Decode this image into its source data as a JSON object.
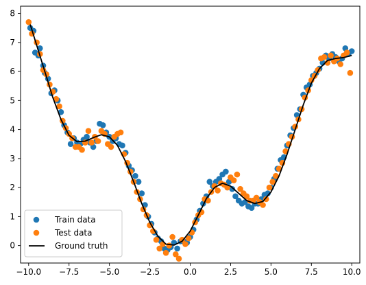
{
  "chart_data": {
    "type": "scatter",
    "title": "",
    "xlabel": "",
    "ylabel": "",
    "xlim": [
      -10.5,
      10.5
    ],
    "ylim": [
      -0.6,
      8.25
    ],
    "xticks": [
      -10,
      -7.5,
      -5,
      -2.5,
      0,
      2.5,
      5,
      7.5,
      10
    ],
    "xtick_labels": [
      "−10.0",
      "−7.5",
      "−5.0",
      "−2.5",
      "0.0",
      "2.5",
      "5.0",
      "7.5",
      "10.0"
    ],
    "yticks": [
      0,
      1,
      2,
      3,
      4,
      5,
      6,
      7,
      8
    ],
    "ytick_labels": [
      "0",
      "1",
      "2",
      "3",
      "4",
      "5",
      "6",
      "7",
      "8"
    ],
    "grid": false,
    "legend_position": "lower-left",
    "series": [
      {
        "name": "Train data",
        "kind": "scatter",
        "color": "#1f77b4",
        "points": [
          [
            -9.9,
            7.5
          ],
          [
            -9.7,
            7.4
          ],
          [
            -9.6,
            6.65
          ],
          [
            -9.4,
            6.55
          ],
          [
            -9.3,
            6.8
          ],
          [
            -9.1,
            6.2
          ],
          [
            -9.0,
            5.95
          ],
          [
            -8.8,
            5.75
          ],
          [
            -8.6,
            5.25
          ],
          [
            -8.4,
            5.35
          ],
          [
            -8.2,
            5.0
          ],
          [
            -8.0,
            4.6
          ],
          [
            -7.8,
            4.15
          ],
          [
            -7.6,
            3.9
          ],
          [
            -7.4,
            3.5
          ],
          [
            -7.2,
            3.7
          ],
          [
            -7.0,
            3.55
          ],
          [
            -6.8,
            3.5
          ],
          [
            -6.6,
            3.65
          ],
          [
            -6.4,
            3.75
          ],
          [
            -6.2,
            3.55
          ],
          [
            -6.0,
            3.4
          ],
          [
            -5.8,
            3.6
          ],
          [
            -5.6,
            4.2
          ],
          [
            -5.4,
            4.15
          ],
          [
            -5.2,
            3.9
          ],
          [
            -5.0,
            3.75
          ],
          [
            -4.8,
            3.6
          ],
          [
            -4.6,
            3.7
          ],
          [
            -4.4,
            3.5
          ],
          [
            -4.2,
            3.45
          ],
          [
            -4.0,
            3.2
          ],
          [
            -3.8,
            2.75
          ],
          [
            -3.6,
            2.6
          ],
          [
            -3.4,
            2.4
          ],
          [
            -3.2,
            2.2
          ],
          [
            -3.0,
            1.8
          ],
          [
            -2.8,
            1.4
          ],
          [
            -2.6,
            1.0
          ],
          [
            -2.4,
            0.75
          ],
          [
            -2.2,
            0.45
          ],
          [
            -2.0,
            0.25
          ],
          [
            -1.8,
            0.15
          ],
          [
            -1.6,
            -0.1
          ],
          [
            -1.4,
            -0.15
          ],
          [
            -1.2,
            -0.05
          ],
          [
            -1.0,
            0.1
          ],
          [
            -0.8,
            -0.1
          ],
          [
            -0.6,
            0.15
          ],
          [
            -0.4,
            0.15
          ],
          [
            -0.2,
            0.1
          ],
          [
            0.0,
            0.3
          ],
          [
            0.2,
            0.55
          ],
          [
            0.4,
            0.9
          ],
          [
            0.6,
            1.2
          ],
          [
            0.8,
            1.45
          ],
          [
            1.0,
            1.7
          ],
          [
            1.2,
            2.2
          ],
          [
            1.4,
            2.05
          ],
          [
            1.6,
            2.2
          ],
          [
            1.8,
            2.3
          ],
          [
            2.0,
            2.45
          ],
          [
            2.2,
            2.55
          ],
          [
            2.4,
            2.2
          ],
          [
            2.6,
            1.95
          ],
          [
            2.8,
            1.7
          ],
          [
            3.0,
            1.55
          ],
          [
            3.2,
            1.45
          ],
          [
            3.4,
            1.5
          ],
          [
            3.6,
            1.35
          ],
          [
            3.8,
            1.3
          ],
          [
            4.0,
            1.45
          ],
          [
            4.2,
            1.45
          ],
          [
            4.4,
            1.6
          ],
          [
            4.6,
            1.75
          ],
          [
            4.8,
            1.8
          ],
          [
            5.0,
            2.0
          ],
          [
            5.2,
            2.3
          ],
          [
            5.4,
            2.65
          ],
          [
            5.6,
            2.95
          ],
          [
            5.8,
            3.05
          ],
          [
            6.0,
            3.45
          ],
          [
            6.2,
            3.8
          ],
          [
            6.4,
            4.05
          ],
          [
            6.6,
            4.5
          ],
          [
            6.8,
            4.7
          ],
          [
            7.0,
            5.2
          ],
          [
            7.2,
            5.45
          ],
          [
            7.4,
            5.55
          ],
          [
            7.6,
            5.85
          ],
          [
            7.8,
            5.95
          ],
          [
            8.0,
            6.1
          ],
          [
            8.2,
            6.3
          ],
          [
            8.4,
            6.55
          ],
          [
            8.6,
            6.45
          ],
          [
            8.8,
            6.6
          ],
          [
            9.0,
            6.5
          ],
          [
            9.2,
            6.35
          ],
          [
            9.4,
            6.45
          ],
          [
            9.6,
            6.8
          ],
          [
            9.8,
            6.6
          ],
          [
            10.0,
            6.7
          ]
        ]
      },
      {
        "name": "Test data",
        "kind": "scatter",
        "color": "#ff7f0e",
        "points": [
          [
            -10.0,
            7.7
          ],
          [
            -9.8,
            7.3
          ],
          [
            -9.5,
            7.0
          ],
          [
            -9.3,
            6.6
          ],
          [
            -9.1,
            6.05
          ],
          [
            -8.9,
            5.9
          ],
          [
            -8.7,
            5.55
          ],
          [
            -8.5,
            5.3
          ],
          [
            -8.3,
            5.05
          ],
          [
            -8.1,
            4.8
          ],
          [
            -7.9,
            4.3
          ],
          [
            -7.7,
            4.05
          ],
          [
            -7.5,
            3.85
          ],
          [
            -7.3,
            3.7
          ],
          [
            -7.1,
            3.4
          ],
          [
            -6.9,
            3.4
          ],
          [
            -6.7,
            3.3
          ],
          [
            -6.5,
            3.55
          ],
          [
            -6.3,
            3.95
          ],
          [
            -6.1,
            3.55
          ],
          [
            -5.9,
            3.75
          ],
          [
            -5.7,
            3.6
          ],
          [
            -5.5,
            3.95
          ],
          [
            -5.3,
            3.85
          ],
          [
            -5.1,
            3.5
          ],
          [
            -4.9,
            3.4
          ],
          [
            -4.7,
            3.75
          ],
          [
            -4.5,
            3.85
          ],
          [
            -4.3,
            3.9
          ],
          [
            -4.1,
            3.15
          ],
          [
            -3.9,
            2.85
          ],
          [
            -3.7,
            2.55
          ],
          [
            -3.5,
            2.2
          ],
          [
            -3.3,
            1.85
          ],
          [
            -3.1,
            1.6
          ],
          [
            -2.9,
            1.25
          ],
          [
            -2.7,
            1.05
          ],
          [
            -2.5,
            0.7
          ],
          [
            -2.3,
            0.5
          ],
          [
            -2.1,
            0.2
          ],
          [
            -1.9,
            -0.1
          ],
          [
            -1.7,
            0.05
          ],
          [
            -1.5,
            -0.25
          ],
          [
            -1.3,
            0.0
          ],
          [
            -1.1,
            0.3
          ],
          [
            -0.9,
            -0.3
          ],
          [
            -0.7,
            -0.45
          ],
          [
            -0.5,
            0.2
          ],
          [
            -0.3,
            0.05
          ],
          [
            -0.1,
            0.25
          ],
          [
            0.1,
            0.45
          ],
          [
            0.3,
            0.8
          ],
          [
            0.5,
            1.05
          ],
          [
            0.7,
            1.15
          ],
          [
            0.9,
            1.6
          ],
          [
            1.1,
            1.55
          ],
          [
            1.3,
            1.85
          ],
          [
            1.5,
            2.05
          ],
          [
            1.7,
            1.9
          ],
          [
            1.9,
            2.15
          ],
          [
            2.1,
            2.1
          ],
          [
            2.3,
            2.0
          ],
          [
            2.5,
            2.35
          ],
          [
            2.7,
            2.25
          ],
          [
            2.9,
            2.45
          ],
          [
            3.1,
            1.95
          ],
          [
            3.3,
            1.8
          ],
          [
            3.5,
            1.7
          ],
          [
            3.7,
            1.55
          ],
          [
            3.9,
            1.55
          ],
          [
            4.1,
            1.65
          ],
          [
            4.3,
            1.5
          ],
          [
            4.5,
            1.4
          ],
          [
            4.7,
            1.6
          ],
          [
            4.9,
            2.0
          ],
          [
            5.1,
            2.2
          ],
          [
            5.3,
            2.4
          ],
          [
            5.5,
            2.65
          ],
          [
            5.7,
            2.85
          ],
          [
            5.9,
            3.25
          ],
          [
            6.1,
            3.5
          ],
          [
            6.3,
            3.75
          ],
          [
            6.5,
            4.1
          ],
          [
            6.7,
            4.35
          ],
          [
            6.9,
            4.7
          ],
          [
            7.1,
            5.1
          ],
          [
            7.3,
            5.35
          ],
          [
            7.5,
            5.7
          ],
          [
            7.7,
            5.85
          ],
          [
            7.9,
            6.05
          ],
          [
            8.1,
            6.45
          ],
          [
            8.3,
            6.5
          ],
          [
            8.5,
            6.3
          ],
          [
            8.7,
            6.55
          ],
          [
            8.9,
            6.35
          ],
          [
            9.1,
            6.45
          ],
          [
            9.3,
            6.25
          ],
          [
            9.5,
            6.55
          ],
          [
            9.7,
            6.65
          ],
          [
            9.9,
            5.95
          ]
        ]
      },
      {
        "name": "Ground truth",
        "kind": "line",
        "color": "#000000",
        "points": [
          [
            -9.9,
            7.62
          ],
          [
            -9.5,
            6.9
          ],
          [
            -9.0,
            6.0
          ],
          [
            -8.5,
            5.1
          ],
          [
            -8.0,
            4.35
          ],
          [
            -7.5,
            3.8
          ],
          [
            -7.0,
            3.58
          ],
          [
            -6.5,
            3.6
          ],
          [
            -6.0,
            3.72
          ],
          [
            -5.5,
            3.82
          ],
          [
            -5.0,
            3.75
          ],
          [
            -4.5,
            3.45
          ],
          [
            -4.0,
            2.9
          ],
          [
            -3.5,
            2.2
          ],
          [
            -3.0,
            1.45
          ],
          [
            -2.5,
            0.8
          ],
          [
            -2.0,
            0.32
          ],
          [
            -1.5,
            0.05
          ],
          [
            -1.0,
            0.02
          ],
          [
            -0.5,
            0.15
          ],
          [
            0.0,
            0.5
          ],
          [
            0.5,
            1.05
          ],
          [
            1.0,
            1.62
          ],
          [
            1.5,
            2.0
          ],
          [
            2.0,
            2.15
          ],
          [
            2.5,
            2.05
          ],
          [
            3.0,
            1.8
          ],
          [
            3.5,
            1.55
          ],
          [
            4.0,
            1.45
          ],
          [
            4.5,
            1.52
          ],
          [
            5.0,
            1.85
          ],
          [
            5.5,
            2.4
          ],
          [
            6.0,
            3.15
          ],
          [
            6.5,
            4.0
          ],
          [
            7.0,
            4.85
          ],
          [
            7.5,
            5.6
          ],
          [
            8.0,
            6.1
          ],
          [
            8.5,
            6.38
          ],
          [
            9.0,
            6.45
          ],
          [
            9.5,
            6.48
          ],
          [
            10.0,
            6.55
          ]
        ]
      }
    ]
  }
}
